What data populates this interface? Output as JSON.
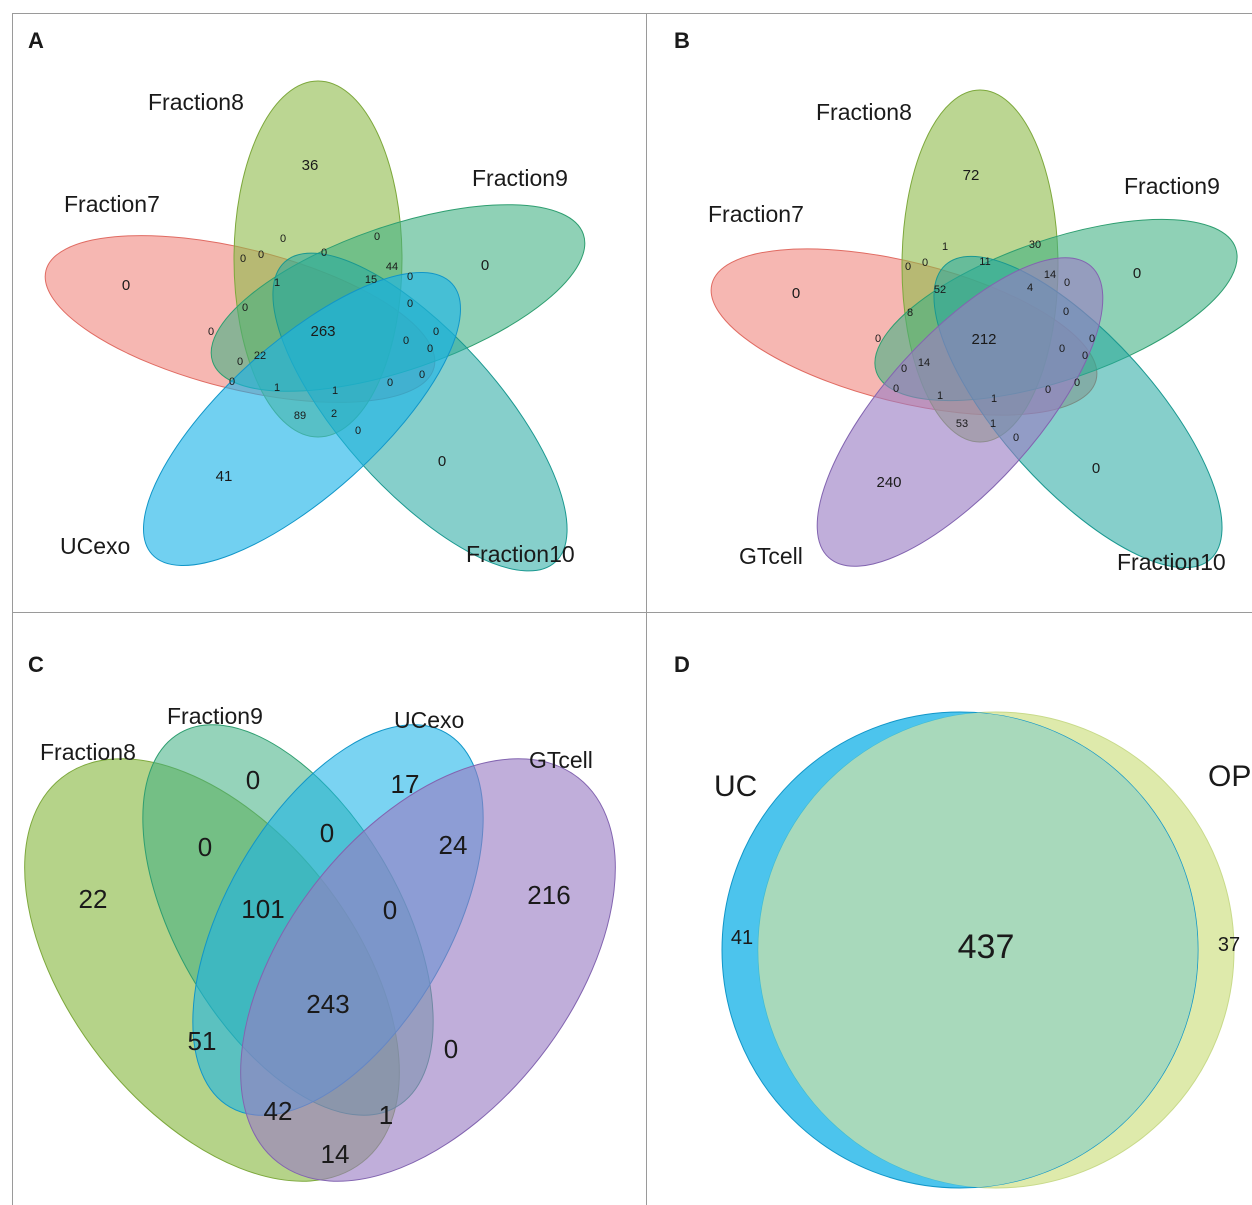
{
  "panels": {
    "A": {
      "letter": "A",
      "sets": [
        "Fraction7",
        "Fraction8",
        "Fraction9",
        "Fraction10",
        "UCexo"
      ],
      "counts": {
        "fraction8_only": "36",
        "fraction9_only": "0",
        "fraction7_only": "0",
        "fraction10_only": "0",
        "ucexo_only": "41",
        "all_five": "263",
        "r1": "0",
        "r2": "0",
        "r3": "0",
        "r4": "0",
        "r5": "0",
        "r6": "1",
        "r7": "44",
        "r8": "15",
        "r9": "0",
        "r10": "0",
        "r11": "0",
        "r12": "0",
        "r13": "0",
        "r14": "22",
        "r15": "0",
        "r16": "0",
        "r17": "0",
        "r18": "0",
        "r19": "1",
        "r20": "1",
        "r21": "0",
        "r22": "89",
        "r23": "2",
        "r24": "0"
      }
    },
    "B": {
      "letter": "B",
      "sets": [
        "Fraction7",
        "Fraction8",
        "Fraction9",
        "Fraction10",
        "GTcell"
      ],
      "counts": {
        "fraction8_only": "72",
        "fraction9_only": "0",
        "fraction7_only": "0",
        "fraction10_only": "0",
        "gtcell_only": "240",
        "all_five": "212",
        "r1": "1",
        "r2": "30",
        "r3": "11",
        "r4": "0",
        "r5": "0",
        "r6": "14",
        "r7": "0",
        "r8": "52",
        "r9": "4",
        "r10": "0",
        "r11": "8",
        "r12": "0",
        "r13": "0",
        "r14": "0",
        "r15": "0",
        "r16": "14",
        "r17": "0",
        "r18": "0",
        "r19": "0",
        "r20": "1",
        "r21": "1",
        "r22": "0",
        "r23": "53",
        "r24": "1",
        "r25": "0"
      }
    },
    "C": {
      "letter": "C",
      "sets": [
        "Fraction8",
        "Fraction9",
        "UCexo",
        "GTcell"
      ],
      "counts": {
        "fraction9_only": "0",
        "ucexo_only": "17",
        "fraction8_only": "22",
        "gtcell_only": "216",
        "r1": "0",
        "r2": "0",
        "r3": "24",
        "r4": "101",
        "r5": "0",
        "r6": "243",
        "r7": "51",
        "r8": "0",
        "r9": "42",
        "r10": "1",
        "r11": "14"
      }
    },
    "D": {
      "letter": "D",
      "sets": [
        "UC",
        "OP"
      ],
      "counts": {
        "uc_only": "41",
        "overlap": "437",
        "op_only": "37"
      }
    }
  },
  "colors": {
    "red": "#F08A82",
    "green_olive": "#8DBB4A",
    "green_teal": "#3EAF82",
    "teal": "#23A8A0",
    "blue": "#1AB3E8",
    "purple": "#9A7DC3",
    "yellow": "#DCE9A6",
    "venn_d_overlap": "#A8D9BB",
    "frame": "#9a9a9a"
  }
}
